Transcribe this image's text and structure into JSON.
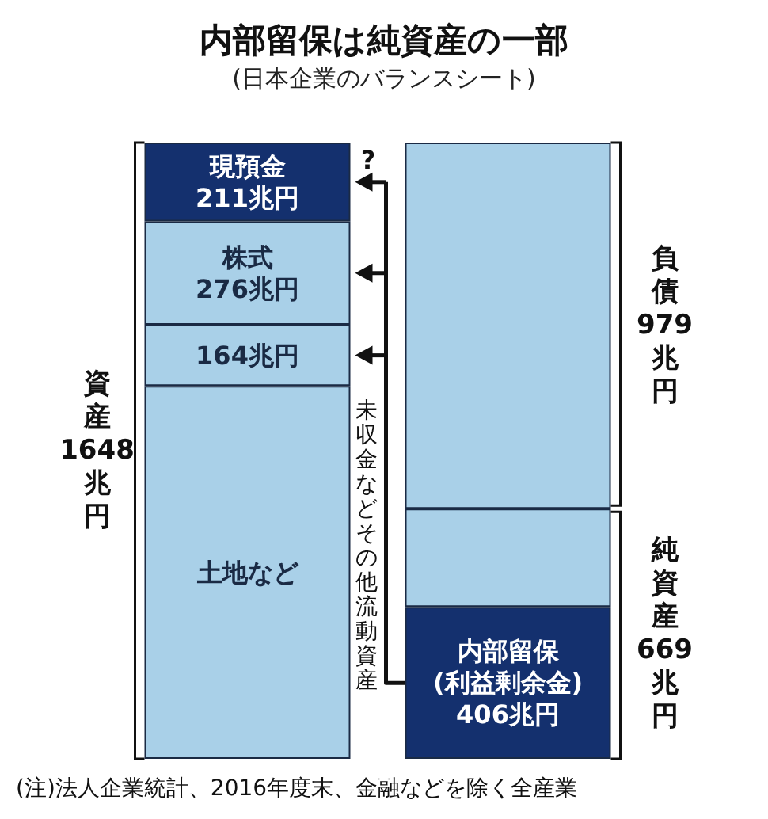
{
  "chart_data": {
    "type": "bar",
    "title": "内部留保は純資産の一部",
    "subtitle": "(日本企業のバランスシート)",
    "categories": [
      null,
      null
    ],
    "stacked": true,
    "ylim": [
      0,
      1648
    ],
    "tick_labels": false,
    "grid": false,
    "series": [
      {
        "values": [
          997,
          406
        ],
        "colors": [
          "#a9d0e8",
          "#14306e"
        ],
        "value_labels": [
          "土地など",
          "内部留保\n(利益剰余金)\n406兆円"
        ]
      },
      {
        "values": [
          164,
          263
        ],
        "colors": [
          "#a9d0e8",
          "#a9d0e8"
        ],
        "value_labels": [
          "164兆円",
          null
        ]
      },
      {
        "values": [
          276,
          979
        ],
        "colors": [
          "#a9d0e8",
          "#a9d0e8"
        ],
        "value_labels": [
          "株式\n276兆円",
          null
        ]
      },
      {
        "values": [
          211,
          null
        ],
        "colors": [
          "#14306e",
          null
        ],
        "value_labels": [
          "現預金\n211兆円",
          null
        ]
      }
    ],
    "annotations": [
      "資産1648兆円",
      "負債979兆円",
      "純資産669兆円",
      "?",
      "未収金などその他流動資産",
      "(注)法人企業統計、2016年度末、金融などを除く全産業"
    ]
  }
}
